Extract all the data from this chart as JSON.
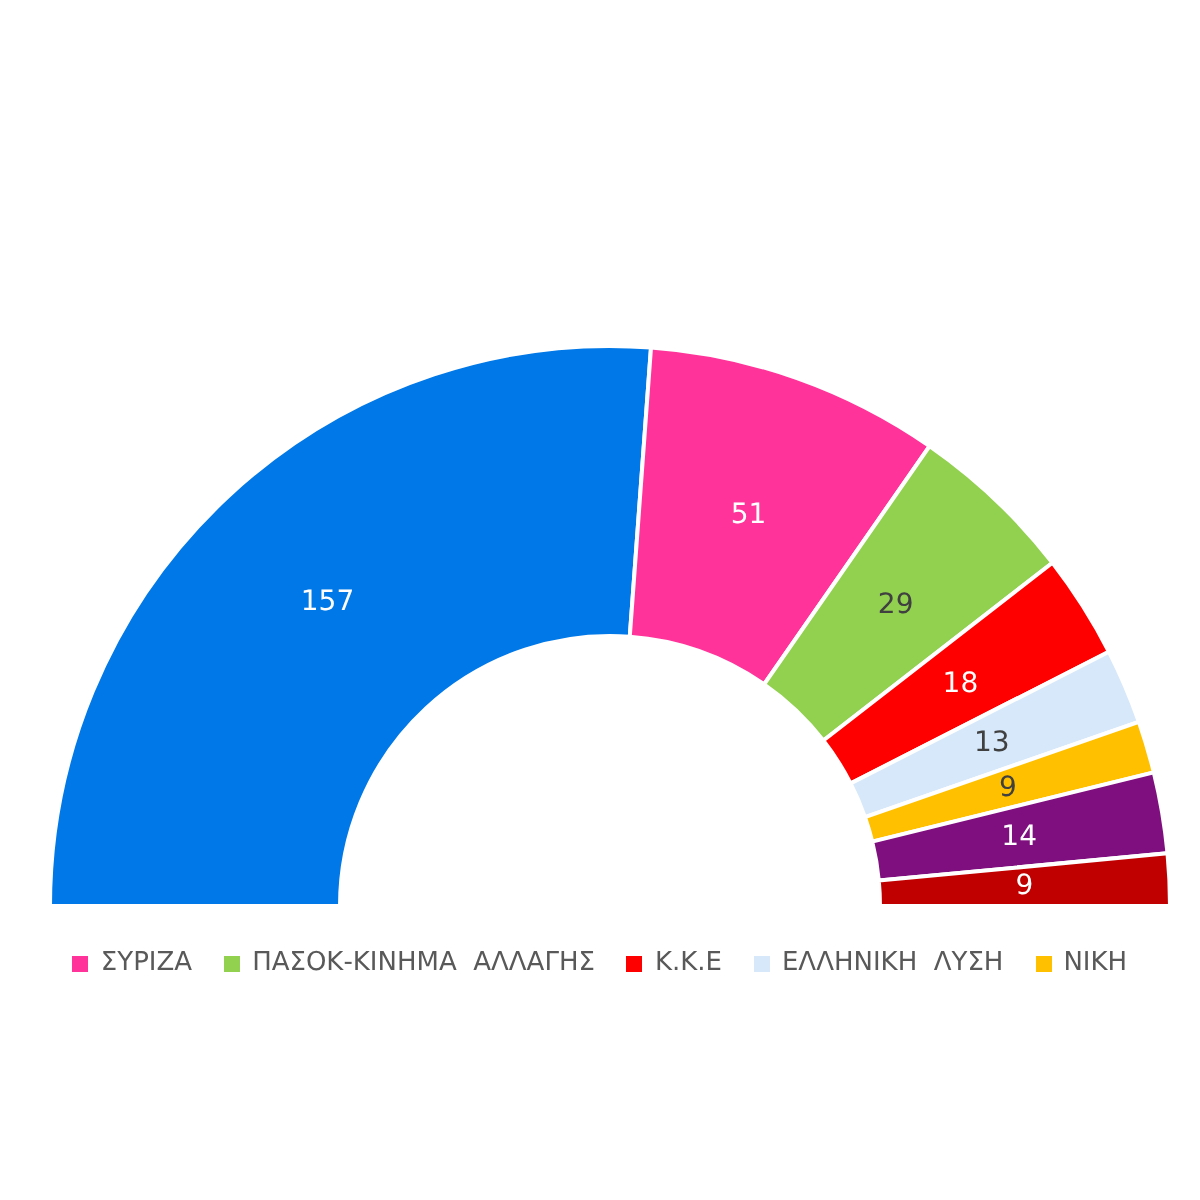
{
  "chart_data": {
    "type": "donut",
    "categories": [
      null,
      "ΣΥΡΙΖΑ",
      "ΠΑΣΟΚ-ΚΙΝΗΜΑ  ΑΛΛΑΓΗΣ",
      "Κ.Κ.Ε",
      "ΕΛΛΗΝΙΚΗ  ΛΥΣΗ",
      "ΝΙΚΗ",
      null,
      null
    ],
    "values": [
      157,
      51,
      29,
      18,
      13,
      9,
      14,
      9
    ],
    "colors": [
      "#0078e7",
      "#ff3399",
      "#92d050",
      "#ff0000",
      "#d6e8fa",
      "#ffc000",
      "#7f0f7e",
      "#c00000"
    ],
    "data_labels": true,
    "legend": "bottom"
  }
}
